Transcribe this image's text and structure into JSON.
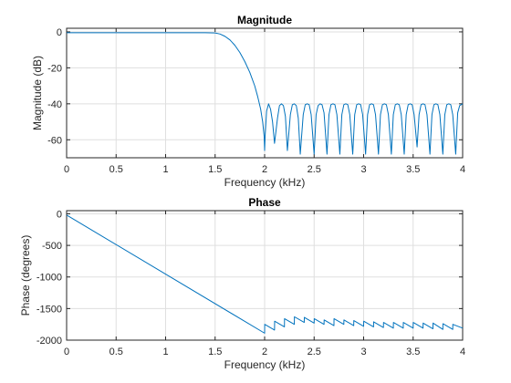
{
  "colors": {
    "series": "#0072BD",
    "grid": "#dfdfdf",
    "axis": "#262626"
  },
  "chart_data": [
    {
      "type": "line",
      "title": "Magnitude",
      "xlabel": "Frequency (kHz)",
      "ylabel": "Magnitude (dB)",
      "xlim": [
        0,
        4
      ],
      "ylim": [
        -70,
        2
      ],
      "xticks": [
        0,
        0.5,
        1,
        1.5,
        2,
        2.5,
        3,
        3.5,
        4
      ],
      "xtick_labels": [
        "0",
        "0.5",
        "1",
        "1.5",
        "2",
        "2.5",
        "3",
        "3.5",
        "4"
      ],
      "yticks": [
        0,
        -20,
        -40,
        -60
      ],
      "ytick_labels": [
        "0",
        "-20",
        "-40",
        "-60"
      ],
      "grid": true,
      "series": [
        {
          "x": [
            0,
            0.5,
            1,
            1.4,
            1.5,
            1.55,
            1.6,
            1.65,
            1.7,
            1.75,
            1.8,
            1.85,
            1.9,
            1.93,
            1.96,
            1.98,
            1.995,
            2.0,
            2.005,
            2.02,
            2.04,
            2.06,
            2.08,
            2.1,
            2.13,
            2.15,
            2.17,
            2.19,
            2.21,
            2.23,
            2.26,
            2.28,
            2.3,
            2.32,
            2.34,
            2.36,
            2.39,
            2.41,
            2.43,
            2.45,
            2.47,
            2.5,
            2.52,
            2.54,
            2.56,
            2.58,
            2.6,
            2.63,
            2.65,
            2.67,
            2.69,
            2.71,
            2.73,
            2.76,
            2.78,
            2.8,
            2.82,
            2.84,
            2.86,
            2.89,
            2.91,
            2.93,
            2.95,
            2.97,
            2.99,
            3.02,
            3.04,
            3.06,
            3.08,
            3.1,
            3.12,
            3.15,
            3.17,
            3.19,
            3.21,
            3.23,
            3.25,
            3.28,
            3.3,
            3.32,
            3.34,
            3.36,
            3.38,
            3.41,
            3.43,
            3.45,
            3.47,
            3.49,
            3.51,
            3.54,
            3.56,
            3.58,
            3.6,
            3.62,
            3.64,
            3.67,
            3.69,
            3.71,
            3.73,
            3.75,
            3.77,
            3.8,
            3.82,
            3.84,
            3.86,
            3.88,
            3.9,
            3.93,
            3.95,
            3.97,
            4.0
          ],
          "y": [
            -0.5,
            -0.5,
            -0.5,
            -0.5,
            -0.6,
            -1.2,
            -2.5,
            -4.5,
            -7.5,
            -11.5,
            -16.5,
            -22.5,
            -30,
            -36,
            -43,
            -50,
            -58,
            -66,
            -58,
            -44,
            -40,
            -43,
            -50,
            -62,
            -48,
            -41,
            -40,
            -41,
            -47,
            -66,
            -46,
            -40.5,
            -40,
            -41,
            -48,
            -68,
            -46,
            -40.5,
            -40,
            -40.5,
            -46,
            -68,
            -46,
            -41,
            -40,
            -40.5,
            -45,
            -68,
            -46,
            -40.5,
            -40,
            -40.5,
            -46,
            -68,
            -46,
            -40.5,
            -40,
            -40.5,
            -46,
            -68,
            -46,
            -40.5,
            -40,
            -40.5,
            -46,
            -68,
            -46,
            -40.5,
            -40,
            -40.5,
            -46,
            -68,
            -46,
            -40.5,
            -40,
            -40.5,
            -46,
            -68,
            -46,
            -40.5,
            -40,
            -40.5,
            -46,
            -68,
            -46,
            -40.5,
            -40,
            -40.5,
            -46,
            -64,
            -46,
            -40.5,
            -40,
            -40.5,
            -46,
            -68,
            -46,
            -40.5,
            -40,
            -40.5,
            -46,
            -68,
            -46,
            -40.5,
            -40,
            -40.5,
            -46,
            -68,
            -45,
            -41,
            -40
          ]
        }
      ]
    },
    {
      "type": "line",
      "title": "Phase",
      "xlabel": "Frequency (kHz)",
      "ylabel": "Phase (degrees)",
      "xlim": [
        0,
        4
      ],
      "ylim": [
        -2000,
        50
      ],
      "xticks": [
        0,
        0.5,
        1,
        1.5,
        2,
        2.5,
        3,
        3.5,
        4
      ],
      "xtick_labels": [
        "0",
        "0.5",
        "1",
        "1.5",
        "2",
        "2.5",
        "3",
        "3.5",
        "4"
      ],
      "yticks": [
        0,
        -500,
        -1000,
        -1500,
        -2000
      ],
      "ytick_labels": [
        "0",
        "-500",
        "-1000",
        "-1500",
        "-2000"
      ],
      "grid": true,
      "series": [
        {
          "x": [
            0,
            2.0,
            2.001,
            2.1,
            2.101,
            2.2,
            2.201,
            2.3,
            2.301,
            2.4,
            2.401,
            2.5,
            2.501,
            2.6,
            2.601,
            2.7,
            2.701,
            2.8,
            2.801,
            2.9,
            2.901,
            3.0,
            3.001,
            3.1,
            3.101,
            3.2,
            3.201,
            3.3,
            3.301,
            3.4,
            3.401,
            3.5,
            3.501,
            3.6,
            3.601,
            3.7,
            3.701,
            3.8,
            3.801,
            3.9,
            3.901,
            4.0
          ],
          "y": [
            -20,
            -1890,
            -1750,
            -1840,
            -1700,
            -1790,
            -1660,
            -1750,
            -1630,
            -1720,
            -1640,
            -1730,
            -1660,
            -1750,
            -1680,
            -1770,
            -1660,
            -1750,
            -1680,
            -1770,
            -1690,
            -1780,
            -1700,
            -1790,
            -1710,
            -1800,
            -1720,
            -1810,
            -1720,
            -1810,
            -1720,
            -1810,
            -1720,
            -1810,
            -1730,
            -1820,
            -1730,
            -1830,
            -1740,
            -1830,
            -1750,
            -1810
          ]
        }
      ]
    }
  ]
}
